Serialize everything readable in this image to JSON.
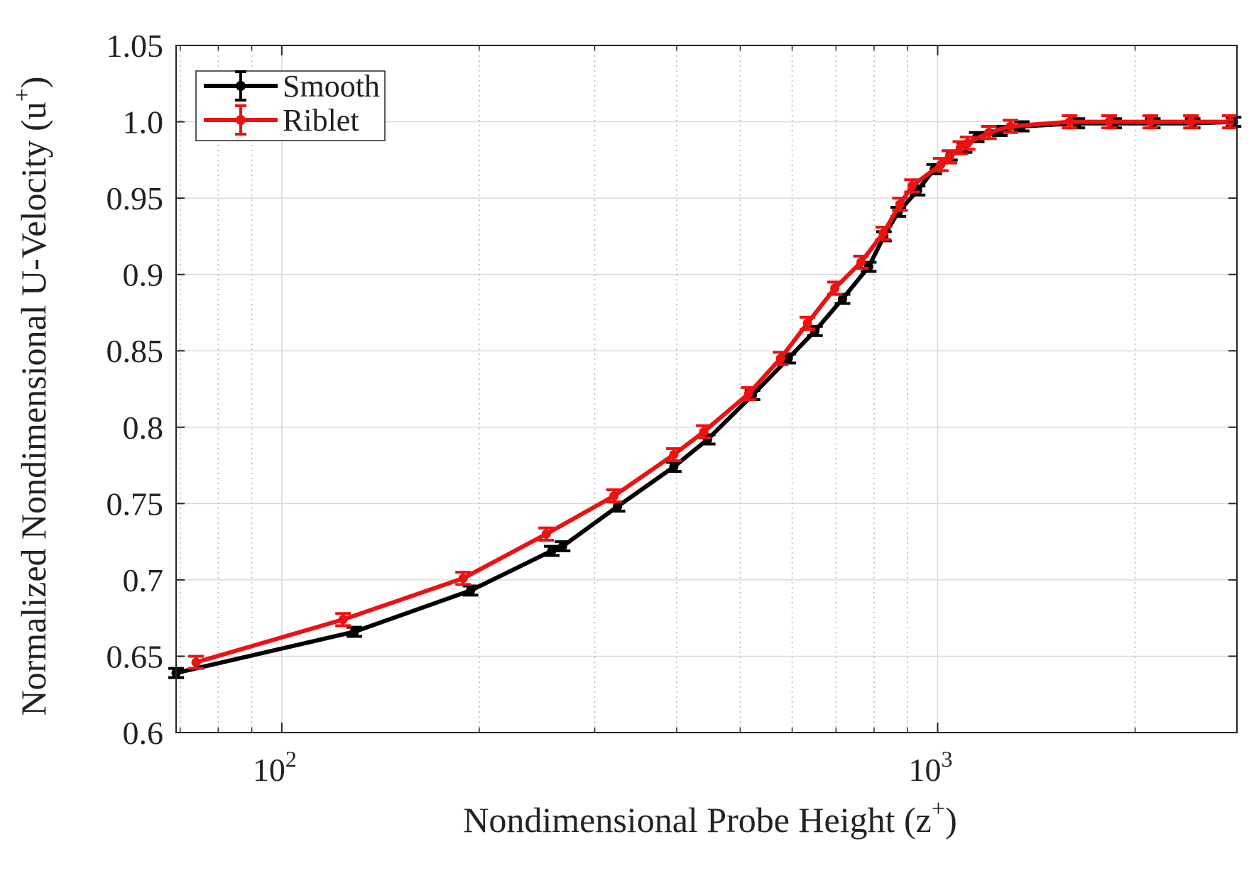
{
  "chart_data": {
    "type": "line",
    "title": "",
    "xlabel": "Nondimensional Probe Height (z",
    "xlabel_sup": "+",
    "xlabel_close": ")",
    "ylabel": "Normalized Nondimensional U-Velocity (u",
    "ylabel_sup": "+",
    "ylabel_close": ")",
    "xscale": "log",
    "xlim": [
      69,
      2860
    ],
    "ylim": [
      0.6,
      1.05
    ],
    "grid": true,
    "yticks": [
      {
        "v": 0.6,
        "label": "0.6"
      },
      {
        "v": 0.65,
        "label": "0.65"
      },
      {
        "v": 0.7,
        "label": "0.7"
      },
      {
        "v": 0.75,
        "label": "0.75"
      },
      {
        "v": 0.8,
        "label": "0.8"
      },
      {
        "v": 0.85,
        "label": "0.85"
      },
      {
        "v": 0.9,
        "label": "0.9"
      },
      {
        "v": 0.95,
        "label": "0.95"
      },
      {
        "v": 1.0,
        "label": "1.0"
      },
      {
        "v": 1.05,
        "label": "1.05"
      }
    ],
    "xticks": [
      {
        "v": 100,
        "base": "10",
        "exp": "2"
      },
      {
        "v": 1000,
        "base": "10",
        "exp": "3"
      }
    ],
    "minor_xticks": [
      70,
      80,
      90,
      200,
      300,
      400,
      500,
      600,
      700,
      800,
      900,
      2000
    ],
    "legend_position": "top-left",
    "series": [
      {
        "name": "Smooth",
        "color": "#000000",
        "marker": "circle",
        "x": [
          69,
          129,
          194,
          258,
          268,
          325,
          396,
          446,
          522,
          592,
          650,
          716,
          785,
          828,
          871,
          932,
          988,
          1044,
          1099,
          1147,
          1244,
          1343,
          1633,
          1858,
          2128,
          2448,
          2826
        ],
        "y": [
          0.639,
          0.666,
          0.693,
          0.719,
          0.722,
          0.748,
          0.774,
          0.792,
          0.821,
          0.845,
          0.863,
          0.884,
          0.905,
          0.925,
          0.941,
          0.955,
          0.969,
          0.978,
          0.983,
          0.99,
          0.994,
          0.997,
          0.999,
          0.999,
          0.999,
          0.999,
          1.0
        ],
        "err": [
          0.003,
          0.003,
          0.003,
          0.003,
          0.003,
          0.003,
          0.003,
          0.003,
          0.003,
          0.003,
          0.003,
          0.003,
          0.003,
          0.003,
          0.003,
          0.003,
          0.003,
          0.003,
          0.003,
          0.003,
          0.003,
          0.003,
          0.003,
          0.003,
          0.003,
          0.003,
          0.003
        ]
      },
      {
        "name": "Riblet",
        "color": "#ee1111",
        "marker": "circle",
        "x": [
          74,
          124,
          189,
          253,
          321,
          396,
          440,
          515,
          576,
          633,
          697,
          764,
          826,
          876,
          914,
          1011,
          1042,
          1083,
          1111,
          1197,
          1291,
          1589,
          1826,
          2110,
          2433,
          2790
        ],
        "y": [
          0.646,
          0.674,
          0.701,
          0.73,
          0.755,
          0.782,
          0.797,
          0.822,
          0.845,
          0.868,
          0.891,
          0.908,
          0.927,
          0.946,
          0.958,
          0.972,
          0.977,
          0.983,
          0.986,
          0.993,
          0.997,
          1.0,
          1.0,
          1.0,
          1.0,
          1.0
        ],
        "err": [
          0.004,
          0.004,
          0.004,
          0.004,
          0.004,
          0.004,
          0.004,
          0.004,
          0.004,
          0.004,
          0.004,
          0.004,
          0.004,
          0.004,
          0.004,
          0.004,
          0.004,
          0.004,
          0.004,
          0.004,
          0.004,
          0.004,
          0.004,
          0.004,
          0.004,
          0.004
        ]
      }
    ]
  }
}
